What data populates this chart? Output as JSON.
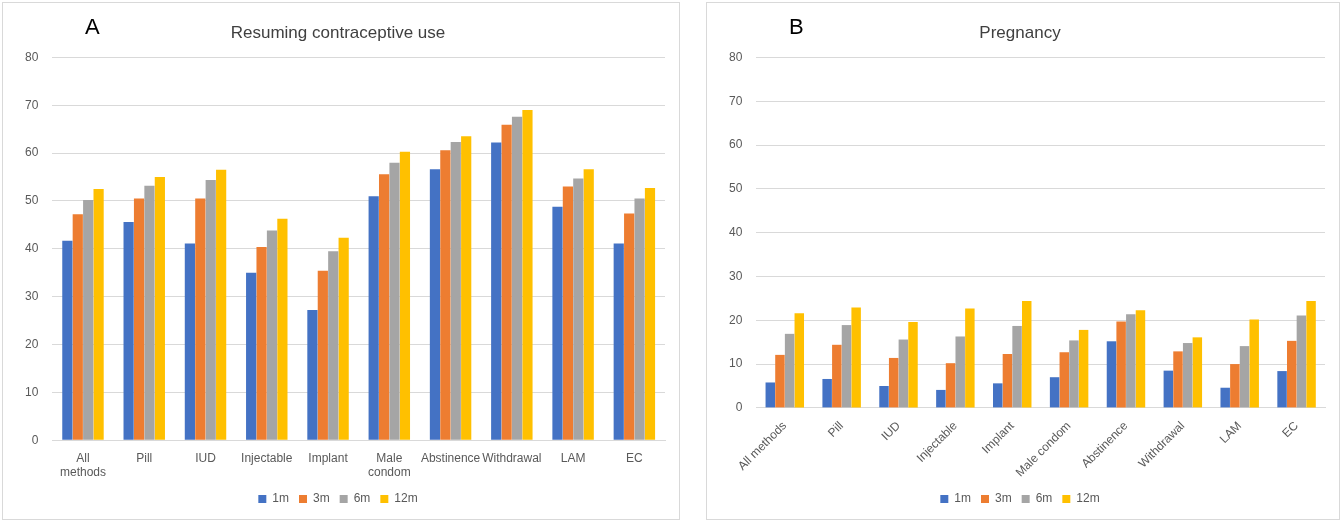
{
  "chart_data": [
    {
      "type": "bar",
      "title": "Resuming contraceptive use",
      "annotations": [
        "A"
      ],
      "categories": [
        "All methods",
        "Pill",
        "IUD",
        "Injectable",
        "Implant",
        "Male condom",
        "Abstinence",
        "Withdrawal",
        "LAM",
        "EC"
      ],
      "series": [
        {
          "name": "1m",
          "color": "#4472c4",
          "values": [
            41.7,
            45.6,
            41.1,
            35.0,
            27.2,
            51.0,
            56.6,
            62.2,
            48.8,
            41.1
          ]
        },
        {
          "name": "3m",
          "color": "#ed7d31",
          "values": [
            47.2,
            50.5,
            50.5,
            40.4,
            35.4,
            55.6,
            60.6,
            65.9,
            53.0,
            47.4
          ]
        },
        {
          "name": "6m",
          "color": "#a5a5a5",
          "values": [
            50.2,
            53.2,
            54.4,
            43.8,
            39.5,
            58.0,
            62.3,
            67.6,
            54.7,
            50.5
          ]
        },
        {
          "name": "12m",
          "color": "#ffc000",
          "values": [
            52.5,
            55.0,
            56.5,
            46.3,
            42.3,
            60.3,
            63.5,
            69.0,
            56.6,
            52.7
          ]
        }
      ],
      "ylim": [
        0,
        80
      ],
      "yticks": [
        0,
        10,
        20,
        30,
        40,
        50,
        60,
        70,
        80
      ],
      "grid": "y",
      "legend": "bottom"
    },
    {
      "type": "bar",
      "title": "Pregnancy",
      "annotations": [
        "B"
      ],
      "categories": [
        "All methods",
        "Pill",
        "IUD",
        "Injectable",
        "Implant",
        "Male condom",
        "Abstinence",
        "Withdrawal",
        "LAM",
        "EC"
      ],
      "series": [
        {
          "name": "1m",
          "color": "#4472c4",
          "values": [
            5.8,
            6.6,
            5.0,
            4.1,
            5.6,
            7.0,
            15.2,
            8.5,
            4.6,
            8.4
          ]
        },
        {
          "name": "3m",
          "color": "#ed7d31",
          "values": [
            12.1,
            14.4,
            11.4,
            10.2,
            12.3,
            12.7,
            19.7,
            12.9,
            10.0,
            15.3
          ]
        },
        {
          "name": "6m",
          "color": "#a5a5a5",
          "values": [
            16.9,
            18.9,
            15.6,
            16.3,
            18.7,
            15.4,
            21.4,
            14.8,
            14.1,
            21.1
          ]
        },
        {
          "name": "12m",
          "color": "#ffc000",
          "values": [
            21.6,
            22.9,
            19.6,
            22.7,
            24.4,
            17.8,
            22.3,
            16.1,
            20.2,
            24.4
          ]
        }
      ],
      "ylim": [
        0,
        80
      ],
      "yticks": [
        0,
        10,
        20,
        30,
        40,
        50,
        60,
        70,
        80
      ],
      "grid": "y",
      "legend": "bottom"
    }
  ]
}
